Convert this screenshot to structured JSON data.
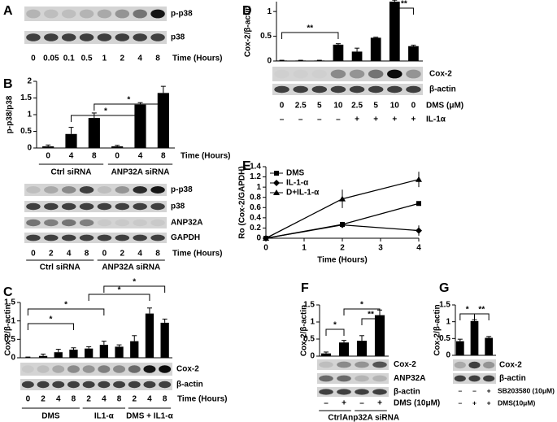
{
  "chart_data": [
    {
      "type": "blot",
      "panel": "A",
      "blot": {
        "rows": [
          "p-p38",
          "p38"
        ]
      },
      "sign_rows": [
        {
          "name": "Time (Hours)",
          "signs": [
            "0",
            "0.05",
            "0.1",
            "0.5",
            "1",
            "2",
            "4",
            "8"
          ]
        }
      ]
    },
    {
      "type": "bar",
      "panel": "B",
      "y_label": "p-p38/p38",
      "categories": [
        "0",
        "4",
        "8",
        "0",
        "4",
        "8"
      ],
      "x_label": "Time (Hours)",
      "groups": [
        "Ctrl siRNA",
        "ANP32A siRNA"
      ],
      "values": [
        0.05,
        0.42,
        0.9,
        0.05,
        1.3,
        1.65
      ],
      "errors": [
        0.04,
        0.2,
        0.15,
        0.03,
        0.06,
        0.2
      ],
      "color": "#000000",
      "ylim": [
        0,
        2
      ],
      "yticks": [
        0,
        0.5,
        1,
        1.5,
        2
      ],
      "annotations": [
        "*",
        "*"
      ],
      "blot": {
        "rows": [
          "p-p38",
          "p38",
          "ANP32A",
          "GAPDH"
        ]
      },
      "sign_rows": [
        {
          "name": "Time (Hours)",
          "signs": [
            "0",
            "2",
            "4",
            "8",
            "0",
            "2",
            "4",
            "8"
          ]
        }
      ],
      "blot_groups": [
        "Ctrl siRNA",
        "ANP32A siRNA"
      ]
    },
    {
      "type": "bar",
      "panel": "C",
      "y_label": "Cox-2/β-actin",
      "values": [
        0.01,
        0.05,
        0.15,
        0.22,
        0.25,
        0.35,
        0.3,
        0.45,
        1.2,
        0.95
      ],
      "errors": [
        0.01,
        0.05,
        0.08,
        0.05,
        0.05,
        0.1,
        0.05,
        0.15,
        0.15,
        0.1
      ],
      "color": "#000000",
      "ylim": [
        0,
        1.5
      ],
      "yticks": [
        0,
        0.5,
        1,
        1.5
      ],
      "annotations": [
        "*",
        "*",
        "*",
        "*"
      ],
      "blot": {
        "rows": [
          "Cox-2",
          "β-actin"
        ]
      },
      "sign_rows": [
        {
          "name": "Time (Hours)",
          "signs": [
            "0",
            "2",
            "4",
            "8",
            "2",
            "4",
            "8",
            "2",
            "4",
            "8"
          ]
        }
      ],
      "blot_groups": [
        "DMS",
        "IL1-α",
        "DMS + IL1-α"
      ]
    },
    {
      "type": "bar",
      "panel": "D",
      "y_label": "Cox-2/β-actin",
      "values": [
        0.01,
        0.01,
        0.01,
        0.33,
        0.19,
        0.47,
        1.2,
        0.3
      ],
      "errors": [
        0.005,
        0.005,
        0.005,
        0.02,
        0.07,
        0.01,
        0.03,
        0.02
      ],
      "color": "#000000",
      "ylim": [
        0,
        1.2
      ],
      "yticks": [
        0,
        0.5,
        1
      ],
      "annotations": [
        "**",
        "**"
      ],
      "blot": {
        "rows": [
          "Cox-2",
          "β-actin"
        ]
      },
      "sign_rows": [
        {
          "name": "DMS (μM)",
          "signs": [
            "0",
            "2.5",
            "5",
            "10",
            "2.5",
            "5",
            "10",
            "0"
          ]
        },
        {
          "name": "IL-1α",
          "signs": [
            "–",
            "–",
            "–",
            "–",
            "+",
            "+",
            "+",
            "+"
          ]
        }
      ]
    },
    {
      "type": "line",
      "panel": "E",
      "y_label": "Ro (Cox-2/GAPDH)",
      "x_label": "Time (Hours)",
      "xlim": [
        0,
        4
      ],
      "xticks": [
        0,
        1,
        2,
        3,
        4
      ],
      "ylim": [
        0,
        1.4
      ],
      "yticks": [
        0,
        0.2,
        0.4,
        0.6,
        0.8,
        1,
        1.2,
        1.4
      ],
      "legend": "top-left",
      "series": [
        {
          "name": "DMS",
          "marker": "square",
          "color": "#000000",
          "x": [
            0,
            2,
            4
          ],
          "values": [
            0,
            0.27,
            0.68
          ],
          "errors": [
            0.01,
            0.02,
            0.04
          ]
        },
        {
          "name": "IL-1-α",
          "marker": "diamond",
          "color": "#000000",
          "x": [
            0,
            2,
            4
          ],
          "values": [
            0,
            0.26,
            0.15
          ],
          "errors": [
            0.01,
            0.02,
            0.1
          ]
        },
        {
          "name": "D+IL-1-α",
          "marker": "triangle",
          "color": "#000000",
          "x": [
            0,
            2,
            4
          ],
          "values": [
            0,
            0.77,
            1.15
          ],
          "errors": [
            0.01,
            0.18,
            0.15
          ]
        }
      ]
    },
    {
      "type": "bar",
      "panel": "F",
      "y_label": "Cox-2/β-actin",
      "values": [
        0.08,
        0.4,
        0.45,
        1.2
      ],
      "errors": [
        0.04,
        0.06,
        0.15,
        0.15
      ],
      "color": "#000000",
      "ylim": [
        0,
        1.5
      ],
      "yticks": [
        0,
        0.5,
        1,
        1.5
      ],
      "annotations": [
        "*",
        "**",
        "*"
      ],
      "blot": {
        "rows": [
          "Cox-2",
          "ANP32A",
          "β-actin"
        ]
      },
      "sign_rows": [
        {
          "name": "DMS (10μM)",
          "signs": [
            "–",
            "+",
            "–",
            "+"
          ]
        }
      ],
      "blot_groups": [
        "Ctrl",
        "Anp32A siRNA"
      ]
    },
    {
      "type": "bar",
      "panel": "G",
      "y_label": "Cox-2/β-actin",
      "values": [
        0.42,
        1.02,
        0.52
      ],
      "errors": [
        0.06,
        0.04,
        0.04
      ],
      "color": "#000000",
      "ylim": [
        0,
        1.5
      ],
      "yticks": [
        0,
        0.5,
        1,
        1.5
      ],
      "annotations": [
        "*",
        "**"
      ],
      "blot": {
        "rows": [
          "Cox-2",
          "β-actin"
        ]
      },
      "sign_rows": [
        {
          "name": "SB203580 (10μM)",
          "signs": [
            "–",
            "–",
            "+"
          ]
        },
        {
          "name": "DMS(10μM)",
          "signs": [
            "–",
            "+",
            "+"
          ]
        }
      ]
    }
  ]
}
